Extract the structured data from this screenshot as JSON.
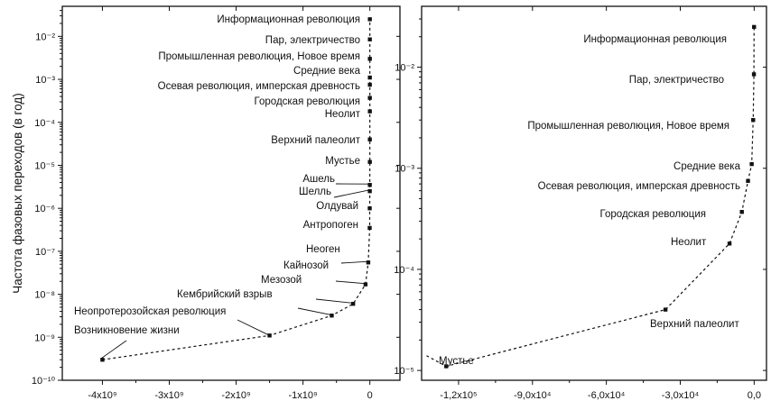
{
  "chart_data": [
    {
      "type": "scatter",
      "ylabel": "Частота фазовых переходов (в год)",
      "xlabel": "",
      "log_y": true,
      "ylim": [
        1e-10,
        0.05
      ],
      "xlim": [
        -4600000000,
        450000000
      ],
      "x_ticks": [
        -4000000000,
        -3000000000,
        -2000000000,
        -1000000000,
        0
      ],
      "x_tick_labels": [
        "-4x10⁹",
        "-3x10⁹",
        "-2x10⁹",
        "-1x10⁹",
        "0"
      ],
      "y_ticks": [
        1e-10,
        1e-09,
        1e-08,
        1e-07,
        1e-06,
        1e-05,
        0.0001,
        0.001,
        0.01
      ],
      "y_tick_labels": [
        "10⁻¹⁰",
        "10⁻⁹",
        "10⁻⁸",
        "10⁻⁷",
        "10⁻⁶",
        "10⁻⁵",
        "10⁻⁴",
        "10⁻³",
        "10⁻²"
      ],
      "points": [
        {
          "label": "Возникновение жизни",
          "x": -4000000000,
          "y": 3e-10
        },
        {
          "label": "Неопротерозойская революция",
          "x": -1500000000,
          "y": 1.1e-09
        },
        {
          "label": "Кембрийский взрыв",
          "x": -570000000,
          "y": 3.2e-09
        },
        {
          "label": "Мезозой",
          "x": -250000000,
          "y": 6e-09
        },
        {
          "label": "Кайнозой",
          "x": -65000000,
          "y": 1.7e-08
        },
        {
          "label": "Неоген",
          "x": -24000000,
          "y": 5.5e-08
        },
        {
          "label": "Антропоген",
          "x": -2500000,
          "y": 3.5e-07
        },
        {
          "label": "Олдувай",
          "x": -2000000,
          "y": 1e-06
        },
        {
          "label": "Шелль",
          "x": -1000000,
          "y": 2.5e-06
        },
        {
          "label": "Ашель",
          "x": -500000,
          "y": 3.5e-06
        },
        {
          "label": "Мустье",
          "x": -120000,
          "y": 1.2e-05
        },
        {
          "label": "Верхний палеолит",
          "x": -40000,
          "y": 4e-05
        },
        {
          "label": "Неолит",
          "x": -10000,
          "y": 0.00018
        },
        {
          "label": "Городская революция",
          "x": -5000,
          "y": 0.00037
        },
        {
          "label": "Осевая революция, имперская древность",
          "x": -2500,
          "y": 0.00075
        },
        {
          "label": "Средние века",
          "x": -1000,
          "y": 0.0011
        },
        {
          "label": "Промышленная революция, Новое время",
          "x": -400,
          "y": 0.003
        },
        {
          "label": "Пар, электричество",
          "x": -100,
          "y": 0.0085
        },
        {
          "label": "Информационная революция",
          "x": -40,
          "y": 0.025
        }
      ]
    },
    {
      "type": "scatter",
      "ylabel": "",
      "xlabel": "",
      "log_y": true,
      "ylim": [
        8e-06,
        0.04
      ],
      "xlim": [
        -135000,
        5000
      ],
      "x_ticks": [
        -120000,
        -90000,
        -60000,
        -30000,
        0
      ],
      "x_tick_labels": [
        "-1,2x10⁵",
        "-9,0x10⁴",
        "-6,0x10⁴",
        "-3,0x10⁴",
        "0,0"
      ],
      "y_ticks": [
        1e-05,
        0.0001,
        0.001,
        0.01
      ],
      "y_tick_labels": [
        "10⁻⁵",
        "10⁻⁴",
        "10⁻³",
        "10⁻²"
      ],
      "points": [
        {
          "label": "Мустье",
          "x": -125000,
          "y": 1.1e-05
        },
        {
          "label": "Верхний палеолит",
          "x": -36000,
          "y": 4e-05
        },
        {
          "label": "Неолит",
          "x": -10000,
          "y": 0.00018
        },
        {
          "label": "Городская революция",
          "x": -5000,
          "y": 0.00037
        },
        {
          "label": "Осевая революция, имперская древность",
          "x": -2500,
          "y": 0.00075
        },
        {
          "label": "Средние века",
          "x": -1000,
          "y": 0.0011
        },
        {
          "label": "Промышленная революция, Новое время",
          "x": -400,
          "y": 0.003
        },
        {
          "label": "Пар, электричество",
          "x": -100,
          "y": 0.0085
        },
        {
          "label": "Информационная революция",
          "x": -40,
          "y": 0.025
        }
      ]
    }
  ]
}
